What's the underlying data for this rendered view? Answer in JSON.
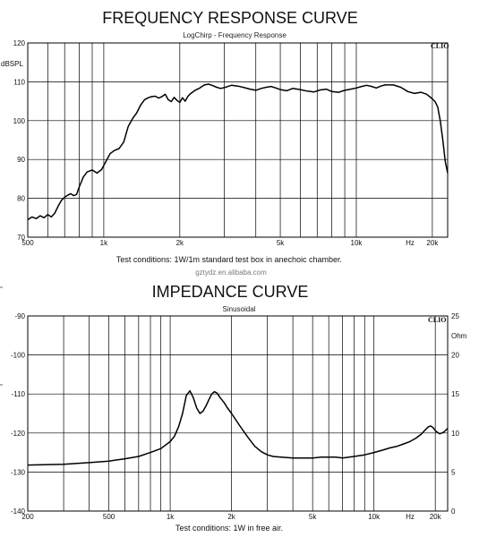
{
  "chart_data": [
    {
      "type": "line",
      "title": "FREQUENCY RESPONSE  CURVE",
      "subtitle": "LogChirp - Frequency Response",
      "brand": "CLIO",
      "ylabel": "dBSPL",
      "xscale": "log",
      "xlim": [
        500,
        23000
      ],
      "ylim": [
        70,
        120
      ],
      "grid": true,
      "x_ticks": [
        {
          "value": 500,
          "label": "500"
        },
        {
          "value": 1000,
          "label": "1k"
        },
        {
          "value": 2000,
          "label": "2k"
        },
        {
          "value": 5000,
          "label": "5k"
        },
        {
          "value": 10000,
          "label": "10k"
        },
        {
          "value": 20000,
          "label": "20k"
        }
      ],
      "x_unit_label": "Hz",
      "y_ticks": [
        70,
        80,
        90,
        100,
        110,
        120
      ],
      "caption": "Test conditions: 1W/1m standard test box in anechoic chamber.",
      "watermark": "gztydz.en.alibaba.com",
      "series": [
        {
          "x": [
            500,
            520,
            540,
            560,
            580,
            600,
            620,
            640,
            660,
            680,
            700,
            720,
            740,
            760,
            780,
            800,
            830,
            860,
            900,
            940,
            980,
            1020,
            1060,
            1100,
            1150,
            1200,
            1250,
            1300,
            1350,
            1400,
            1450,
            1500,
            1550,
            1600,
            1650,
            1700,
            1750,
            1800,
            1850,
            1900,
            1950,
            2000,
            2050,
            2100,
            2150,
            2200,
            2300,
            2400,
            2500,
            2600,
            2700,
            2800,
            2900,
            3000,
            3200,
            3400,
            3600,
            3800,
            4000,
            4200,
            4400,
            4600,
            4800,
            5000,
            5300,
            5600,
            6000,
            6400,
            6800,
            7200,
            7600,
            8000,
            8500,
            9000,
            9500,
            10000,
            10500,
            11000,
            11500,
            12000,
            12500,
            13000,
            14000,
            15000,
            16000,
            17000,
            18000,
            19000,
            20000,
            20500,
            21000,
            21500,
            22000,
            22500,
            23000
          ],
          "y": [
            74.5,
            75.2,
            74.8,
            75.5,
            75.0,
            75.8,
            75.2,
            76.2,
            78.0,
            79.5,
            80.3,
            80.8,
            81.2,
            80.7,
            81.0,
            83.0,
            85.5,
            86.8,
            87.3,
            86.5,
            87.4,
            89.5,
            91.5,
            92.3,
            92.8,
            94.5,
            98.5,
            100.5,
            102.0,
            104.0,
            105.4,
            105.9,
            106.2,
            106.3,
            105.8,
            106.2,
            106.8,
            105.4,
            104.9,
            106.0,
            105.2,
            104.7,
            105.9,
            105.0,
            106.2,
            106.9,
            107.8,
            108.4,
            109.2,
            109.4,
            109.0,
            108.6,
            108.3,
            108.5,
            109.1,
            108.9,
            108.5,
            108.1,
            107.8,
            108.3,
            108.6,
            108.8,
            108.4,
            108.0,
            107.7,
            108.3,
            108.0,
            107.6,
            107.4,
            107.9,
            108.1,
            107.5,
            107.3,
            107.8,
            108.1,
            108.4,
            108.8,
            109.1,
            108.8,
            108.4,
            108.9,
            109.2,
            109.2,
            108.6,
            107.5,
            107.0,
            107.3,
            106.8,
            105.6,
            104.9,
            103.5,
            100.0,
            95.0,
            89.5,
            86.5
          ]
        }
      ]
    },
    {
      "type": "line",
      "title": "IMPEDANCE CURVE",
      "subtitle": "Sinusoidal",
      "brand": "CLIO",
      "xscale": "log",
      "xlim": [
        200,
        23000
      ],
      "ylim_left": [
        -140,
        -90
      ],
      "ylim_right": [
        0,
        25
      ],
      "y_right_unit": "Ohm",
      "grid": true,
      "x_ticks": [
        {
          "value": 200,
          "label": "200"
        },
        {
          "value": 500,
          "label": "500"
        },
        {
          "value": 1000,
          "label": "1k"
        },
        {
          "value": 2000,
          "label": "2k"
        },
        {
          "value": 5000,
          "label": "5k"
        },
        {
          "value": 10000,
          "label": "10k"
        },
        {
          "value": 20000,
          "label": "20k"
        }
      ],
      "x_unit_label": "Hz",
      "y_ticks_left": [
        -140,
        -130,
        -120,
        -110,
        -100,
        -90
      ],
      "y_ticks_right": [
        0,
        5,
        10,
        15,
        20,
        25
      ],
      "caption": "Test conditions: 1W in free air.",
      "series": [
        {
          "x": [
            200,
            300,
            400,
            500,
            600,
            700,
            800,
            900,
            1000,
            1050,
            1100,
            1150,
            1200,
            1250,
            1300,
            1350,
            1400,
            1450,
            1500,
            1550,
            1600,
            1650,
            1700,
            1750,
            1800,
            1850,
            1900,
            2000,
            2200,
            2400,
            2600,
            2800,
            3000,
            3200,
            3500,
            4000,
            4500,
            5000,
            5500,
            6000,
            6500,
            7000,
            8000,
            9000,
            10000,
            11000,
            12000,
            13000,
            14000,
            15000,
            16000,
            17000,
            18000,
            18500,
            19000,
            19500,
            20000,
            21000,
            22000,
            23000
          ],
          "y": [
            5.9,
            6.0,
            6.2,
            6.4,
            6.7,
            7.0,
            7.5,
            8.0,
            8.9,
            9.6,
            10.8,
            12.5,
            14.8,
            15.4,
            14.5,
            13.2,
            12.5,
            12.8,
            13.5,
            14.3,
            15.0,
            15.3,
            15.1,
            14.6,
            14.2,
            13.8,
            13.3,
            12.5,
            10.9,
            9.5,
            8.3,
            7.6,
            7.2,
            7.0,
            6.9,
            6.8,
            6.8,
            6.8,
            6.9,
            6.9,
            6.9,
            6.8,
            7.0,
            7.2,
            7.5,
            7.8,
            8.1,
            8.3,
            8.6,
            8.9,
            9.3,
            9.8,
            10.5,
            10.8,
            10.9,
            10.7,
            10.3,
            9.9,
            10.1,
            10.6
          ]
        }
      ]
    }
  ]
}
